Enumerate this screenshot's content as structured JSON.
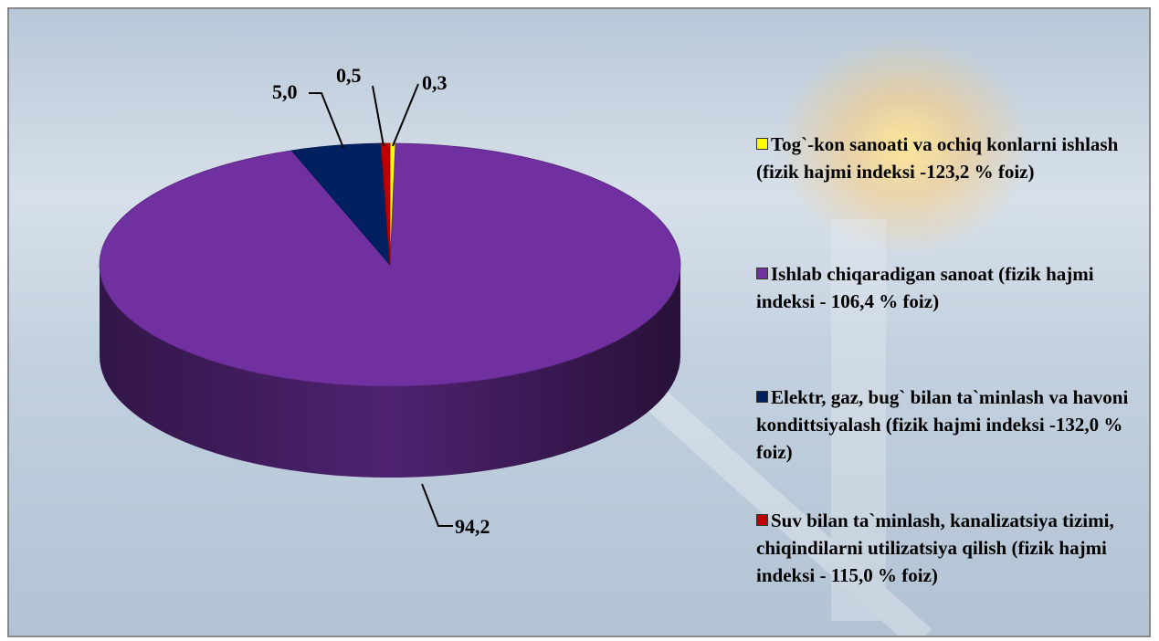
{
  "chart_data": {
    "type": "pie",
    "categories": [
      "Tog`-kon sanoati va ochiq konlarni ishlash (fizik hajmi indeksi -123,2 % foiz)",
      "Ishlab chiqaradigan sanoat (fizik hajmi indeksi - 106,4 % foiz)",
      "Elektr, gaz, bug` bilan ta`minlash va havoni kondittsiyalash (fizik hajmi indeksi -132,0 % foiz)",
      "Suv bilan ta`minlash, kanalizatsiya tizimi, chiqindilarni utilizatsiya qilish (fizik hajmi indeksi - 115,0 % foiz)"
    ],
    "values": [
      0.3,
      94.2,
      5.0,
      0.5
    ],
    "value_labels": [
      "0,3",
      "94,2",
      "5,0",
      "0,5"
    ],
    "colors": [
      "#ffff00",
      "#7030a0",
      "#002060",
      "#c00000"
    ]
  }
}
